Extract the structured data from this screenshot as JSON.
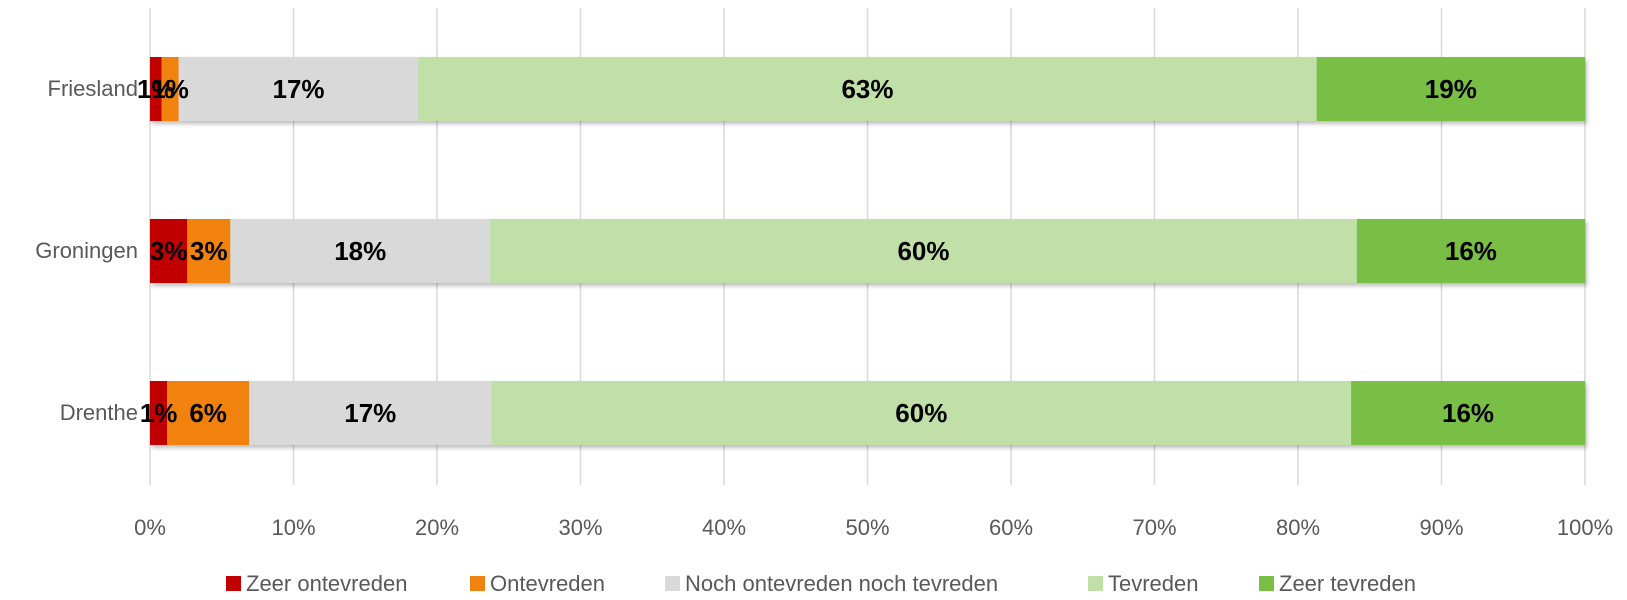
{
  "chart_data": {
    "type": "bar",
    "orientation": "horizontal",
    "stacked": true,
    "percent": true,
    "categories": [
      "Friesland",
      "Groningen",
      "Drenthe"
    ],
    "series": [
      {
        "name": "Zeer ontevreden",
        "color": "#c00000",
        "values": [
          0.8,
          2.6,
          1.2
        ],
        "labels": [
          "1%",
          "3%",
          "1%"
        ]
      },
      {
        "name": "Ontevreden",
        "color": "#f0820f",
        "values": [
          1.2,
          3.0,
          5.7
        ],
        "labels": [
          "1%",
          "3%",
          "6%"
        ]
      },
      {
        "name": "Noch ontevreden noch tevreden",
        "color": "#d9d9d9",
        "values": [
          16.7,
          18.1,
          16.9
        ],
        "labels": [
          "17%",
          "18%",
          "17%"
        ]
      },
      {
        "name": "Tevreden",
        "color": "#c0e0a8",
        "values": [
          62.6,
          60.4,
          59.9
        ],
        "labels": [
          "63%",
          "60%",
          "60%"
        ]
      },
      {
        "name": "Zeer tevreden",
        "color": "#7abf45",
        "values": [
          18.7,
          15.9,
          16.3
        ],
        "labels": [
          "19%",
          "16%",
          "16%"
        ]
      }
    ],
    "xlim": [
      0,
      100
    ],
    "xticks": [
      0,
      10,
      20,
      30,
      40,
      50,
      60,
      70,
      80,
      90,
      100
    ],
    "xtick_labels": [
      "0%",
      "10%",
      "20%",
      "30%",
      "40%",
      "50%",
      "60%",
      "70%",
      "80%",
      "90%",
      "100%"
    ],
    "grid": true,
    "legend_position": "bottom"
  }
}
